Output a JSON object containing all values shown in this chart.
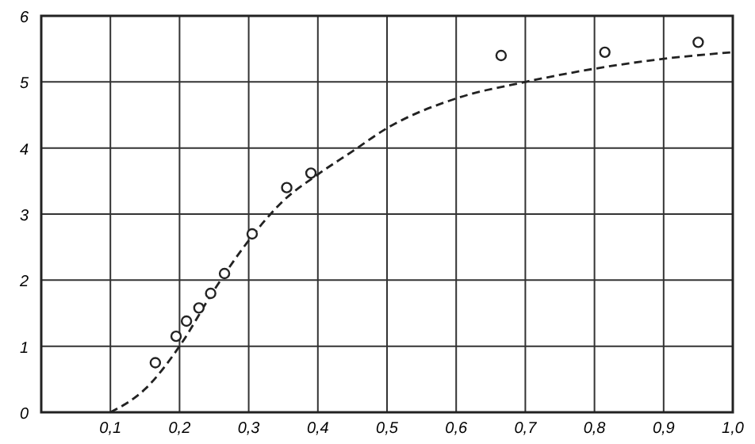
{
  "chart_data": {
    "type": "scatter",
    "xlim": [
      0,
      1
    ],
    "ylim": [
      0,
      6
    ],
    "xticks": [
      {
        "value": 0.1,
        "label": "0,1"
      },
      {
        "value": 0.2,
        "label": "0,2"
      },
      {
        "value": 0.3,
        "label": "0,3"
      },
      {
        "value": 0.4,
        "label": "0,4"
      },
      {
        "value": 0.5,
        "label": "0,5"
      },
      {
        "value": 0.6,
        "label": "0,6"
      },
      {
        "value": 0.7,
        "label": "0,7"
      },
      {
        "value": 0.8,
        "label": "0,8"
      },
      {
        "value": 0.9,
        "label": "0,9"
      },
      {
        "value": 1.0,
        "label": "1,0"
      }
    ],
    "yticks": [
      0,
      1,
      2,
      3,
      4,
      5,
      6
    ],
    "grid": true,
    "series": [
      {
        "color": "#222222",
        "marker": "circle",
        "x": [
          0.165,
          0.195,
          0.21,
          0.228,
          0.245,
          0.265,
          0.305,
          0.355,
          0.39,
          0.665,
          0.815,
          0.95
        ],
        "values": [
          0.75,
          1.15,
          1.38,
          1.58,
          1.8,
          2.1,
          2.7,
          3.4,
          3.62,
          5.4,
          5.45,
          5.6
        ]
      },
      {
        "type": "line",
        "color": "#222222",
        "line_style": "dashed",
        "marker": "none",
        "x": [
          0.1,
          0.15,
          0.2,
          0.25,
          0.3,
          0.35,
          0.4,
          0.45,
          0.5,
          0.6,
          0.7,
          0.8,
          0.9,
          1.0
        ],
        "values": [
          0,
          0.35,
          1.0,
          1.85,
          2.6,
          3.2,
          3.6,
          3.95,
          4.3,
          4.75,
          5.0,
          5.2,
          5.35,
          5.45
        ]
      }
    ]
  }
}
